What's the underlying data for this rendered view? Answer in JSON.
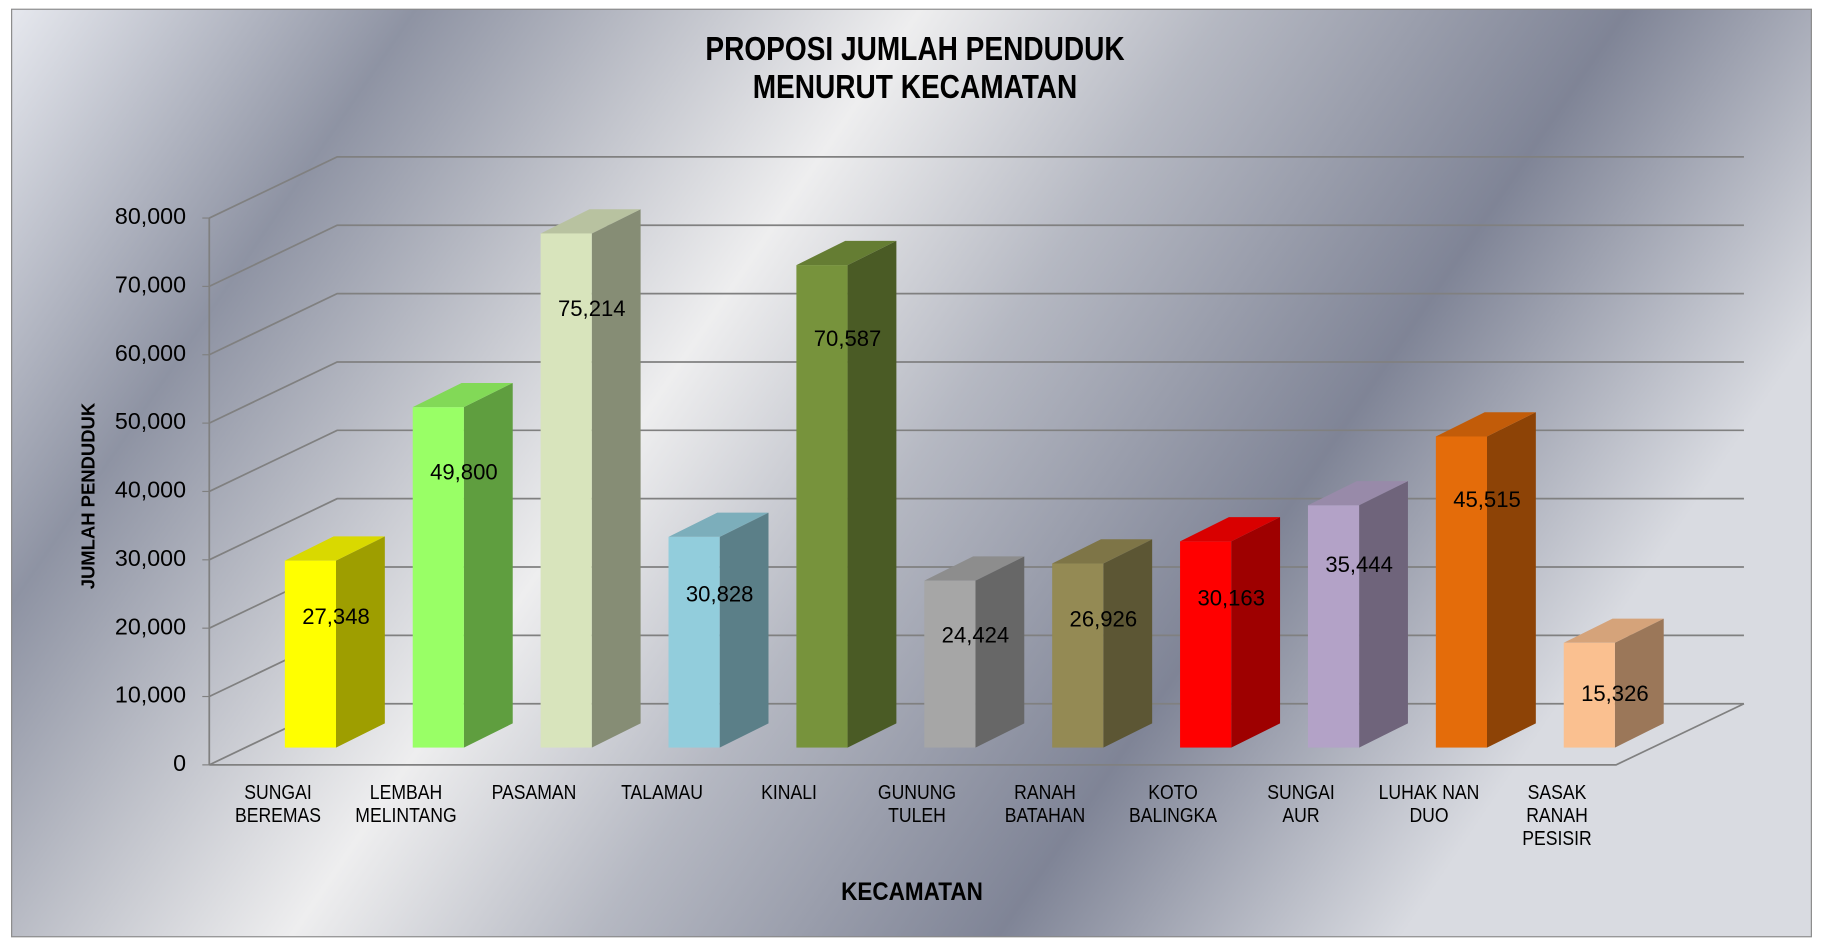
{
  "chart_data": {
    "type": "bar3d",
    "title": "PROPOSI JUMLAH PENDUDUK\nMENURUT KECAMATAN",
    "x_label": "KECAMATAN",
    "y_label": "JUMLAH PENDUDUK",
    "categories": [
      "SUNGAI\nBEREMAS",
      "LEMBAH\nMELINTANG",
      "PASAMAN",
      "TALAMAU",
      "KINALI",
      "GUNUNG\nTULEH",
      "RANAH\nBATAHAN",
      "KOTO\nBALINGKA",
      "SUNGAI\nAUR",
      "LUHAK NAN\nDUO",
      "SASAK\nRANAH\nPESISIR"
    ],
    "values": [
      27348,
      49800,
      75214,
      30828,
      70587,
      24424,
      26926,
      30163,
      35444,
      45515,
      15326
    ],
    "value_labels": [
      "27,348",
      "49,800",
      "75,214",
      "30,828",
      "70,587",
      "24,424",
      "26,926",
      "30,163",
      "35,444",
      "45,515",
      "15,326"
    ],
    "colors": [
      "#ffff00",
      "#99ff66",
      "#d8e4bc",
      "#92cddc",
      "#77933c",
      "#a6a6a6",
      "#948a54",
      "#ff0000",
      "#b3a2c7",
      "#e46c0a",
      "#fac090"
    ],
    "ylim": [
      0,
      80000
    ],
    "yticks": [
      0,
      {
        "value": 10000,
        "label": "10,000"
      },
      {
        "value": 20000,
        "label": "20,000"
      },
      {
        "value": 30000,
        "label": "30,000"
      },
      {
        "value": 40000,
        "label": "40,000"
      },
      {
        "value": 50000,
        "label": "50,000"
      },
      {
        "value": 60000,
        "label": "60,000"
      },
      {
        "value": 70000,
        "label": "70,000"
      },
      {
        "value": 80000,
        "label": "80,000"
      }
    ],
    "grid": true
  }
}
